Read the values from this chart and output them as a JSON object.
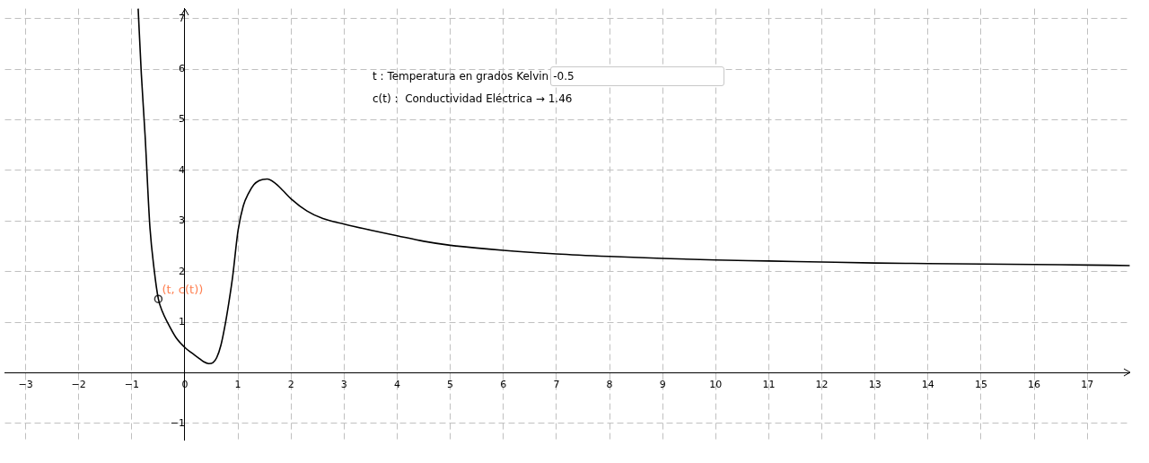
{
  "chart_data": {
    "type": "line",
    "xlim": [
      -3.39,
      17.8
    ],
    "ylim": [
      -1.33,
      7.2
    ],
    "xticks": [
      {
        "value": -3,
        "label": "−3"
      },
      {
        "value": -2,
        "label": "−2"
      },
      {
        "value": -1,
        "label": "−1"
      },
      0,
      1,
      2,
      3,
      4,
      5,
      6,
      7,
      8,
      9,
      10,
      11,
      12,
      13,
      14,
      15,
      16,
      17
    ],
    "yticks": [
      {
        "value": -1,
        "label": "−1"
      },
      1,
      2,
      3,
      4,
      5,
      6,
      7
    ],
    "grid": true,
    "series": [
      {
        "type": "line",
        "color": "#000000",
        "x": [
          -0.88,
          -0.82,
          -0.75,
          -0.66,
          -0.58,
          -0.5,
          -0.42,
          -0.33,
          -0.17,
          0,
          0.12,
          0.25,
          0.35,
          0.45,
          0.53,
          0.6,
          0.68,
          0.75,
          0.83,
          0.9,
          1,
          1.1,
          1.2,
          1.3,
          1.4,
          1.55,
          1.7,
          1.85,
          2,
          2.3,
          2.6,
          3,
          3.5,
          4,
          4.5,
          5,
          6,
          7,
          8,
          9,
          10,
          11,
          12,
          13,
          14,
          15,
          16,
          17,
          17.8
        ],
        "values": [
          7.2,
          5.9,
          4.7,
          2.9,
          2.05,
          1.46,
          1.2,
          1.0,
          0.7,
          0.5,
          0.4,
          0.3,
          0.22,
          0.18,
          0.2,
          0.3,
          0.55,
          0.9,
          1.4,
          1.9,
          2.8,
          3.3,
          3.55,
          3.72,
          3.8,
          3.83,
          3.75,
          3.6,
          3.44,
          3.2,
          3.05,
          2.94,
          2.82,
          2.71,
          2.6,
          2.52,
          2.42,
          2.35,
          2.3,
          2.26,
          2.23,
          2.21,
          2.19,
          2.17,
          2.16,
          2.15,
          2.14,
          2.13,
          2.12
        ]
      },
      {
        "type": "scatter",
        "color": "#333333",
        "marker": "circle",
        "x": [
          -0.5
        ],
        "values": [
          1.46
        ]
      }
    ],
    "annotations": [
      "t : Temperatura en grados Kelvin",
      "-0.5",
      "c(t) :  Conductividad Eléctrica → 1.46",
      {
        "text": "(t, c(t))",
        "x": -0.5,
        "y": 1.46
      }
    ]
  }
}
